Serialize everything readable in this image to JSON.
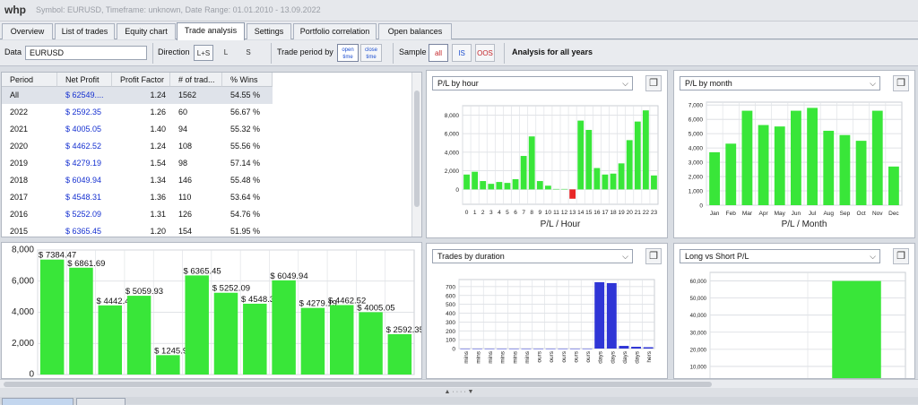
{
  "app": {
    "name": "whp",
    "info": "Symbol: EURUSD, Timeframe: unknown, Date Range: 01.01.2010 - 13.09.2022"
  },
  "tabs": [
    "Overview",
    "List of trades",
    "Equity chart",
    "Trade analysis",
    "Settings",
    "Portfolio correlation",
    "Open balances"
  ],
  "active_tab": "Trade analysis",
  "toolbar": {
    "data_label": "Data",
    "data_value": "EURUSD",
    "direction_label": "Direction",
    "direction_options": [
      "L+S",
      "L",
      "S"
    ],
    "direction_selected": "L+S",
    "trade_period_label": "Trade period by",
    "open_time": "open time",
    "close_time": "close time",
    "sample_label": "Sample",
    "sample_icons": [
      "all",
      "IS",
      "OOS"
    ],
    "analysis_label": "Analysis for all years"
  },
  "table": {
    "columns": [
      "Period",
      "Net Profit",
      "Profit Factor",
      "# of trad...",
      "% Wins"
    ],
    "rows": [
      [
        "All",
        "$ 62549....",
        "1.24",
        "1562",
        "54.55 %"
      ],
      [
        "2022",
        "$ 2592.35",
        "1.26",
        "60",
        "56.67 %"
      ],
      [
        "2021",
        "$ 4005.05",
        "1.40",
        "94",
        "55.32 %"
      ],
      [
        "2020",
        "$ 4462.52",
        "1.24",
        "108",
        "55.56 %"
      ],
      [
        "2019",
        "$ 4279.19",
        "1.54",
        "98",
        "57.14 %"
      ],
      [
        "2018",
        "$ 6049.94",
        "1.34",
        "146",
        "55.48 %"
      ],
      [
        "2017",
        "$ 4548.31",
        "1.36",
        "110",
        "53.64 %"
      ],
      [
        "2016",
        "$ 5252.09",
        "1.31",
        "126",
        "54.76 %"
      ],
      [
        "2015",
        "$ 6365.45",
        "1.20",
        "154",
        "51.95 %"
      ]
    ],
    "selected_row": 0
  },
  "panels": {
    "pl_hour": {
      "title": "P/L by hour",
      "xlabel": "P/L / Hour"
    },
    "pl_month": {
      "title": "P/L by month",
      "xlabel": "P/L / Month"
    },
    "duration": {
      "title": "Trades by duration"
    },
    "long_short": {
      "title": "Long vs Short P/L"
    }
  },
  "icons": {
    "copy": "copy-window-icon",
    "dropdown": "chevron-down-icon"
  },
  "colors": {
    "bar": "#39e639",
    "negative": "#e82727",
    "duration_bar": "#2f35d6"
  },
  "chart_data": [
    {
      "type": "bar",
      "name": "yearly-net-profit",
      "values": [
        7384.47,
        6861.69,
        4442.43,
        5059.93,
        1245.96,
        6365.45,
        5252.09,
        4548.31,
        6049.94,
        4279.19,
        4462.52,
        4005.05,
        2592.35
      ],
      "value_labels": [
        "$ 7384.47",
        "$ 6861.69",
        "$ 4442.43",
        "$ 5059.93",
        "$ 1245.96",
        "$ 6365.45",
        "$ 5252.09",
        "$ 4548.31",
        "$ 6049.94",
        "$ 4279.19",
        "$ 4462.52",
        "$ 4005.05",
        "$ 2592.35"
      ],
      "yticks": [
        "0",
        "2,000",
        "4,000",
        "6,000",
        "8,000"
      ],
      "ylim": [
        0,
        8000
      ],
      "grid": true
    },
    {
      "type": "bar",
      "name": "pl-by-hour",
      "categories": [
        "0",
        "1",
        "2",
        "3",
        "4",
        "5",
        "6",
        "7",
        "8",
        "9",
        "10",
        "11",
        "12",
        "13",
        "14",
        "15",
        "16",
        "17",
        "18",
        "19",
        "20",
        "21",
        "22",
        "23"
      ],
      "values": [
        1600,
        1900,
        900,
        600,
        800,
        700,
        1100,
        3600,
        5700,
        900,
        400,
        50,
        50,
        -1000,
        7400,
        6400,
        2300,
        1600,
        1700,
        2800,
        5300,
        7300,
        8500,
        1500
      ],
      "xlabel": "P/L / Hour",
      "yticks": [
        "0",
        "2,000",
        "4,000",
        "6,000",
        "8,000"
      ],
      "ylim": [
        -1600,
        9000
      ],
      "grid": true
    },
    {
      "type": "bar",
      "name": "pl-by-month",
      "categories": [
        "Jan",
        "Feb",
        "Mar",
        "Apr",
        "May",
        "Jun",
        "Jul",
        "Aug",
        "Sep",
        "Oct",
        "Nov",
        "Dec"
      ],
      "values": [
        3700,
        4300,
        6600,
        5600,
        5500,
        6600,
        6800,
        5200,
        4900,
        4500,
        6600,
        2700
      ],
      "xlabel": "P/L / Month",
      "yticks": [
        "0",
        "1,000",
        "2,000",
        "3,000",
        "4,000",
        "5,000",
        "6,000",
        "7,000"
      ],
      "ylim": [
        0,
        7200
      ],
      "grid": true
    },
    {
      "type": "bar",
      "name": "trades-by-duration",
      "categories": [
        "mins",
        "mins",
        "mins",
        "mins",
        "mins",
        "mins",
        "ours",
        "ours",
        "ours",
        "ours",
        "ours",
        "days",
        "days",
        "days",
        "days",
        "hers"
      ],
      "values": [
        0,
        0,
        0,
        0,
        0,
        0,
        0,
        0,
        0,
        0,
        0,
        750,
        740,
        30,
        20,
        15
      ],
      "yticks": [
        "0",
        "100",
        "200",
        "300",
        "400",
        "500",
        "600",
        "700"
      ],
      "ylim": [
        0,
        780
      ],
      "grid": true
    },
    {
      "type": "bar",
      "name": "long-vs-short",
      "values": [
        1500,
        60000
      ],
      "yticks": [
        "10,000",
        "20,000",
        "30,000",
        "40,000",
        "50,000",
        "60,000"
      ],
      "ylim": [
        0,
        65000
      ],
      "grid": true
    }
  ]
}
